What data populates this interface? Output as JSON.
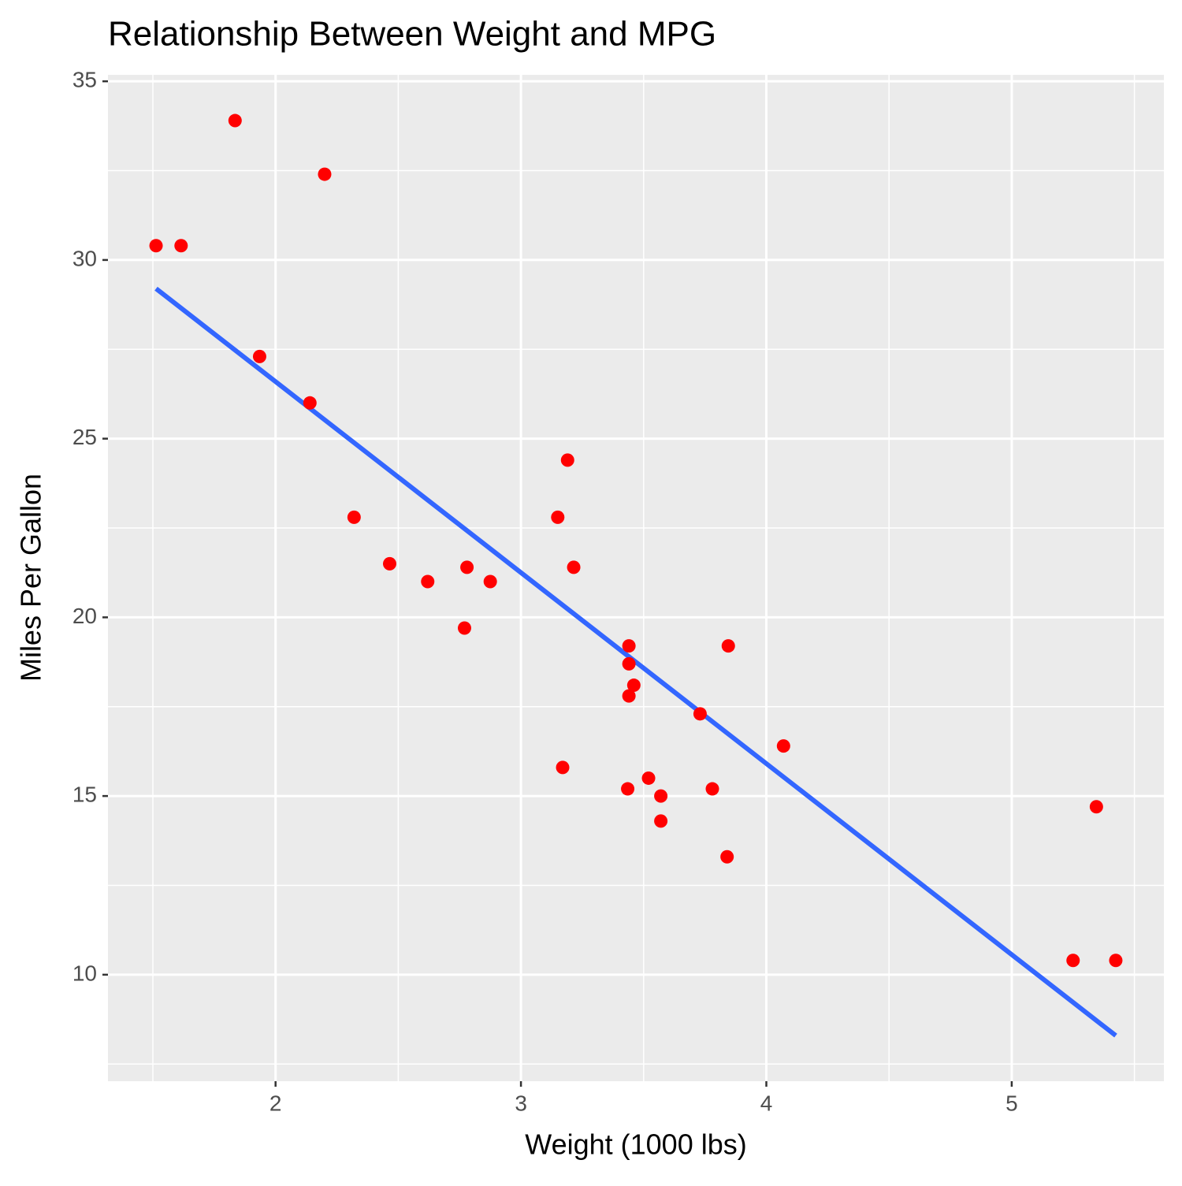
{
  "chart_data": {
    "type": "scatter",
    "title": "Relationship Between Weight and MPG",
    "x_label": "Weight (1000 lbs)",
    "y_label": "Miles Per Gallon",
    "xlim": [
      1.317,
      5.62
    ],
    "ylim": [
      7.02,
      35.18
    ],
    "xticks": [
      2,
      3,
      4,
      5
    ],
    "yticks": [
      10,
      15,
      20,
      25,
      30,
      35
    ],
    "x_minor_grid": [
      1.5,
      2.5,
      3.5,
      4.5,
      5.5
    ],
    "y_minor_grid": [
      7.5,
      12.5,
      17.5,
      22.5,
      27.5,
      32.5
    ],
    "grid": true,
    "background": "#ebebeb",
    "series": [
      {
        "type": "scatter",
        "color": "#ff0000",
        "x": [
          2.62,
          2.875,
          2.32,
          3.215,
          3.44,
          3.46,
          3.57,
          3.19,
          3.15,
          3.44,
          3.44,
          4.07,
          3.73,
          3.78,
          5.25,
          5.424,
          5.345,
          2.2,
          1.615,
          1.835,
          2.465,
          3.52,
          3.435,
          3.84,
          3.845,
          1.935,
          2.14,
          1.513,
          3.17,
          2.77,
          3.57,
          2.78
        ],
        "values": [
          21.0,
          21.0,
          22.8,
          21.4,
          18.7,
          18.1,
          14.3,
          24.4,
          22.8,
          19.2,
          17.8,
          16.4,
          17.3,
          15.2,
          10.4,
          10.4,
          14.7,
          32.4,
          30.4,
          33.9,
          21.5,
          15.5,
          15.2,
          13.3,
          19.2,
          27.3,
          26.0,
          30.4,
          15.8,
          19.7,
          15.0,
          21.4
        ]
      },
      {
        "type": "line",
        "color": "#3366ff",
        "x": [
          1.513,
          5.424
        ],
        "values": [
          29.199,
          8.296
        ]
      }
    ]
  }
}
